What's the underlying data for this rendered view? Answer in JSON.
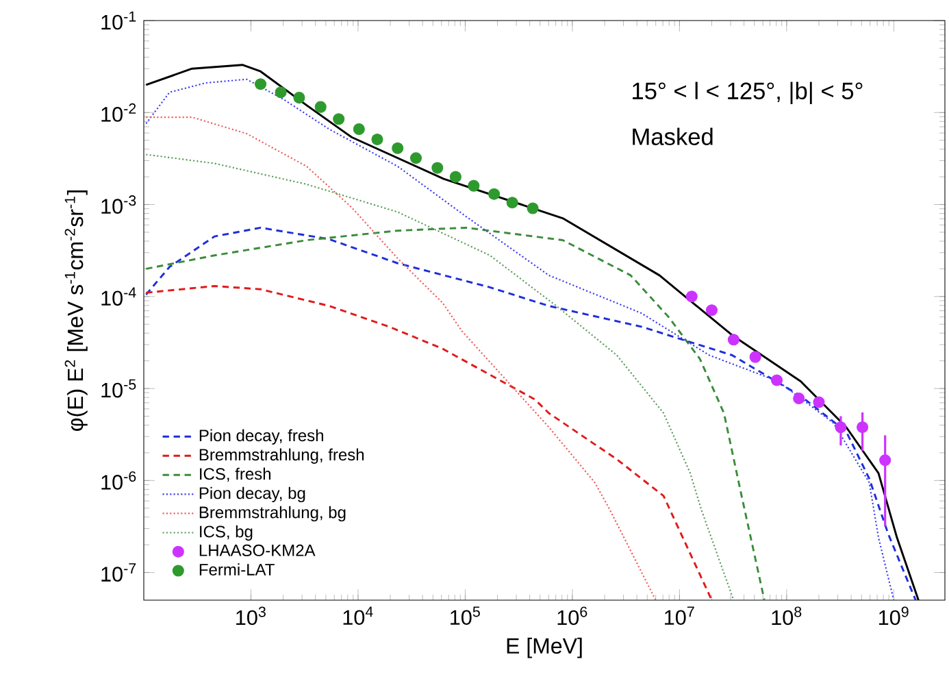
{
  "chart_data": {
    "type": "line",
    "xlabel": "E [MeV]",
    "ylabel": "φ(E) E$^{2}$ [MeV s$^{-1}$cm$^{-2}$sr$^{-1}$]",
    "log": "xy",
    "legend": "bottom left",
    "xlim": [
      100,
      3000000000.0
    ],
    "ylim": [
      5e-08,
      0.1
    ],
    "xticks": [
      {
        "value": 1000,
        "label": "10$^{3}$"
      },
      {
        "value": 10000,
        "label": "10$^{4}$"
      },
      {
        "value": 100000,
        "label": "10$^{5}$"
      },
      {
        "value": 1000000,
        "label": "10$^{6}$"
      },
      {
        "value": 10000000,
        "label": "10$^{7}$"
      },
      {
        "value": 100000000,
        "label": "10$^{8}$"
      },
      {
        "value": 1000000000,
        "label": "10$^{9}$"
      }
    ],
    "yticks": [
      {
        "value": 1e-07,
        "label": "10$^{-7}$"
      },
      {
        "value": 1e-06,
        "label": "10$^{-6}$"
      },
      {
        "value": 1e-05,
        "label": "10$^{-5}$"
      },
      {
        "value": 0.0001,
        "label": "10$^{-4}$"
      },
      {
        "value": 0.001,
        "label": "10$^{-3}$"
      },
      {
        "value": 0.01,
        "label": "10$^{-2}$"
      },
      {
        "value": 0.1,
        "label": "10$^{-1}$"
      }
    ],
    "annotations": [
      "15° < l < 125°, |b| < 5°",
      "Masked"
    ],
    "series": [
      {
        "color": "#000000",
        "line_style": "solid",
        "marker": "none",
        "x": [
          105,
          282,
          832,
          1230,
          3310,
          8710,
          63100,
          813000,
          6500000.0,
          31000000.0,
          135000000.0,
          360000000.0,
          720000000.0,
          1070000000.0,
          1700000000.0
        ],
        "values": [
          0.02,
          0.03,
          0.033,
          0.028,
          0.012,
          0.0054,
          0.0019,
          0.00071,
          0.00017,
          3.8e-05,
          1.2e-05,
          3.8e-06,
          1.2e-06,
          2.4e-07,
          5e-08
        ]
      },
      {
        "name": "Pion decay, fresh",
        "color": "#1f2fd8",
        "line_style": "dashed",
        "marker": "none",
        "x": [
          105,
          174,
          457,
          1230,
          5370,
          23400,
          170000,
          603000,
          4400000.0,
          31000000.0,
          135000000.0,
          360000000.0,
          590000000.0,
          890000000.0,
          1600000000.0
        ],
        "values": [
          0.000105,
          0.00021,
          0.00045,
          0.00056,
          0.00042,
          0.00023,
          0.000126,
          7.9e-05,
          4.7e-05,
          2.3e-05,
          8.3e-06,
          3.4e-06,
          1.05e-06,
          2.6e-07,
          5e-08
        ]
      },
      {
        "name": "Bremmstrahlung, fresh",
        "color": "#e01b1b",
        "line_style": "dashed",
        "marker": "none",
        "x": [
          105,
          457,
          1230,
          5370,
          19500,
          61700,
          447000,
          603000,
          2600000.0,
          7100000.0,
          20000000.0
        ],
        "values": [
          0.00011,
          0.00013,
          0.00012,
          7.9e-05,
          4.7e-05,
          2.7e-05,
          7.6e-06,
          5.4e-06,
          1.7e-06,
          6.8e-07,
          5e-08
        ]
      },
      {
        "name": "ICS, fresh",
        "color": "#3c8c3c",
        "line_style": "dashed",
        "marker": "none",
        "x": [
          105,
          457,
          3310,
          23400,
          102000,
          813000,
          3500000.0,
          7900000.0,
          15500000.0,
          26000000.0,
          38000000.0,
          62000000.0
        ],
        "values": [
          0.0002,
          0.00028,
          0.00041,
          0.00052,
          0.00056,
          0.00041,
          0.00017,
          6e-05,
          2.1e-05,
          5.4e-06,
          6.8e-07,
          5e-08
        ]
      },
      {
        "name": "Pion decay, bg",
        "color": "#3a3af0",
        "line_style": "dotted",
        "marker": "none",
        "x": [
          105,
          174,
          380,
          912,
          2000,
          5370,
          23400,
          102000,
          603000,
          4400000.0,
          19000000.0,
          83000000.0,
          275000000.0,
          590000000.0,
          720000000.0,
          1000000000.0
        ],
        "values": [
          0.0076,
          0.0166,
          0.021,
          0.023,
          0.014,
          0.0066,
          0.0026,
          0.00074,
          0.00017,
          6.6e-05,
          2.3e-05,
          1.2e-05,
          4.2e-06,
          9.5e-07,
          2.4e-07,
          5e-08
        ]
      },
      {
        "name": "Bremmstrahlung, bg",
        "color": "#f05a5a",
        "line_style": "dotted",
        "marker": "none",
        "x": [
          105,
          282,
          912,
          3310,
          8710,
          23400,
          61700,
          93300,
          603000,
          1620000.0,
          2240000.0,
          6000000.0
        ],
        "values": [
          0.0089,
          0.0089,
          0.0059,
          0.0026,
          0.00093,
          0.00026,
          8.5e-05,
          4.2e-05,
          3.8e-06,
          9.5e-07,
          4.8e-07,
          5e-08
        ]
      },
      {
        "name": "ICS, bg",
        "color": "#5a9a5a",
        "line_style": "dotted",
        "marker": "none",
        "x": [
          105,
          457,
          3310,
          23400,
          170000,
          700000,
          2600000.0,
          7100000.0,
          12600000.0,
          16000000.0,
          32000000.0
        ],
        "values": [
          0.0035,
          0.0028,
          0.00166,
          0.00083,
          0.00028,
          8e-05,
          2.3e-05,
          5.4e-06,
          1.2e-06,
          4.8e-07,
          5e-08
        ]
      },
      {
        "name": "LHAASO-KM2A",
        "type": "scatter",
        "color": "#cc33ff",
        "marker": "circle",
        "x": [
          13000000.0,
          20000000.0,
          32000000.0,
          51000000.0,
          81000000.0,
          130000000.0,
          200000000.0,
          320000000.0,
          510000000.0,
          830000000.0
        ],
        "values": [
          0.0001,
          7.1e-05,
          3.4e-05,
          2.2e-05,
          1.23e-05,
          7.8e-06,
          7.1e-06,
          3.8e-06,
          3.8e-06,
          1.66e-06
        ],
        "errors": [
          null,
          null,
          null,
          null,
          null,
          null,
          null,
          [
            2.4e-06,
            5e-06
          ],
          [
            2.1e-06,
            5.5e-06
          ],
          [
            3.2e-07,
            3.1e-06
          ]
        ]
      },
      {
        "name": "Fermi-LAT",
        "type": "scatter",
        "color": "#2e9a2e",
        "marker": "circle",
        "x": [
          1230,
          1900,
          2820,
          4470,
          6600,
          10200,
          15100,
          23400,
          34700,
          55000,
          81300,
          120000,
          186000,
          275000,
          427000
        ],
        "values": [
          0.0204,
          0.0166,
          0.0145,
          0.0115,
          0.0085,
          0.0066,
          0.0051,
          0.0041,
          0.0032,
          0.0025,
          0.002,
          0.0016,
          0.0013,
          0.00105,
          0.00091
        ]
      }
    ]
  }
}
